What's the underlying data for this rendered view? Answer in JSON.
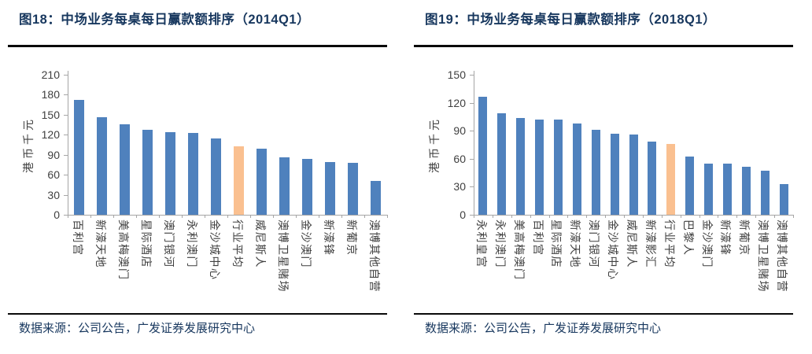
{
  "colors": {
    "bar_blue": "#4F81BD",
    "bar_highlight": "#FAC090",
    "title_navy": "#17375E",
    "axis_line": "#A6A6A6",
    "axis_text": "#404040",
    "rule_black": "#0a0a0a"
  },
  "figures": [
    {
      "title": "图18：中场业务每桌每日赢款额排序（2014Q1）",
      "source": "数据来源：公司公告，广发证券发展研究中心"
    },
    {
      "title": "图19：中场业务每桌每日赢款额排序（2018Q1）",
      "source": "数据来源：公司公告，广发证券发展研究中心"
    }
  ],
  "chart_data": [
    {
      "type": "bar",
      "title": "图18：中场业务每桌每日赢款额排序（2014Q1）",
      "xlabel": "",
      "ylabel": "港币千元",
      "ylim": [
        0,
        210
      ],
      "y_ticks": [
        0,
        30,
        60,
        90,
        120,
        150,
        180,
        210
      ],
      "grid": false,
      "legend_position": "none",
      "highlight_category": "行业平均",
      "categories": [
        "百利宫",
        "新濠天地",
        "美高梅澳门",
        "星际酒店",
        "澳门银河",
        "永利澳门",
        "金沙城中心",
        "行业平均",
        "威尼斯人",
        "澳博卫星赌场",
        "金沙澳门",
        "新濠锋",
        "新葡京",
        "澳博其他自营"
      ],
      "values": [
        172,
        146,
        136,
        128,
        124,
        123,
        114,
        103,
        99,
        86,
        84,
        79,
        78,
        51
      ]
    },
    {
      "type": "bar",
      "title": "图19：中场业务每桌每日赢款额排序（2018Q1）",
      "xlabel": "",
      "ylabel": "港币千元",
      "ylim": [
        0,
        150
      ],
      "y_ticks": [
        0,
        30,
        60,
        90,
        120,
        150
      ],
      "grid": false,
      "legend_position": "none",
      "highlight_category": "行业平均",
      "categories": [
        "永利皇宫",
        "永利澳门",
        "美高梅澳门",
        "百利宫",
        "星际酒店",
        "新濠天地",
        "澳门银河",
        "金沙城中心",
        "威尼斯人",
        "新濠影汇",
        "行业平均",
        "巴黎人",
        "金沙澳门",
        "新濠锋",
        "新葡京",
        "澳博卫星赌场",
        "澳博其他自营"
      ],
      "values": [
        126,
        109,
        104,
        102,
        102,
        98,
        91,
        87,
        86,
        78,
        76,
        62,
        55,
        55,
        51,
        47,
        33
      ]
    }
  ]
}
